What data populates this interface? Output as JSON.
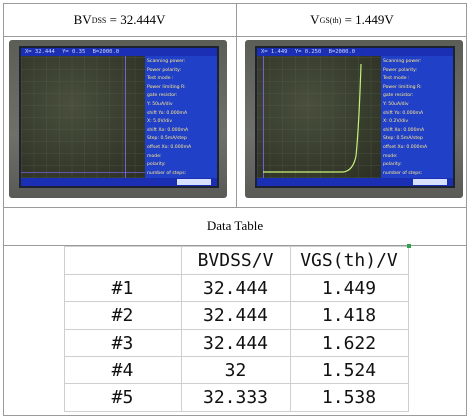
{
  "header": {
    "left": {
      "label": "BV",
      "sub": "DSS",
      "value": " = 32.444V"
    },
    "right": {
      "label": "V",
      "sub": "GS(th)",
      "value": " = 1.449V"
    }
  },
  "scopes": {
    "left": {
      "topbar": {
        "x": "X= 32.444",
        "y": "Y= 0.35",
        "b": "B=2000.0"
      },
      "panel": [
        "Scanning power:",
        "Power polarity:",
        "Test  mode :",
        "Power limiting R:",
        "gate  resistor:",
        "Y: 50uA/div",
        "shift Yo: 0.000mA",
        "X: 5.0V/div",
        "shift Xo: 0.000mA",
        "Step: 0.5mA/step",
        "offset Xo: 0.000mA",
        "mode:",
        "polarity:",
        "number of steps:"
      ]
    },
    "right": {
      "topbar": {
        "x": "X= 1.449",
        "y": "Y= 0.250",
        "b": "B=2000.0"
      },
      "panel": [
        "Scanning power:",
        "Power polarity:",
        "Test  mode :",
        "Power limiting R:",
        "gate  resistor:",
        "Y: 50uA/div",
        "shift Yo: 0.000mA",
        "X: 0.2V/div",
        "shift Xo: 0.000mA",
        "Step: 0.5mA/step",
        "offset Xo: 0.000mA",
        "mode:",
        "polarity:",
        "number of steps:"
      ]
    }
  },
  "data_table_title": "Data Table",
  "table": {
    "headers": [
      "",
      "BVDSS/V",
      "VGS(th)/V"
    ],
    "rows": [
      [
        "#1",
        "32.444",
        "1.449"
      ],
      [
        "#2",
        "32.444",
        "1.418"
      ],
      [
        "#3",
        "32.444",
        "1.622"
      ],
      [
        "#4",
        "32",
        "1.524"
      ],
      [
        "#5",
        "32.333",
        "1.538"
      ]
    ]
  },
  "colors": {
    "screen_panel": "#2140c8",
    "trace": "#c8f07a",
    "marker": "#7e6cff"
  }
}
